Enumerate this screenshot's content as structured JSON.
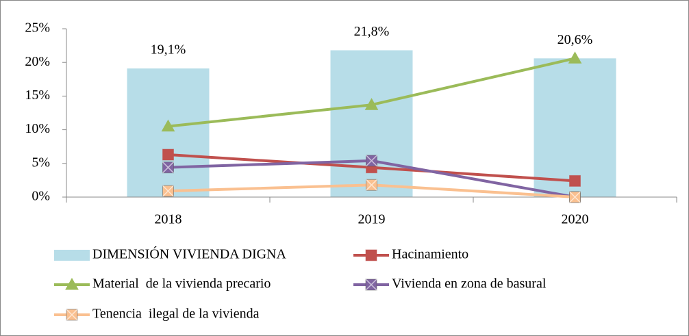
{
  "chart_data": {
    "type": "combo",
    "categories": [
      "2018",
      "2019",
      "2020"
    ],
    "series": [
      {
        "name": "DIMENSIÓN VIVIENDA DIGNA",
        "type": "bar",
        "color": "#b7dde8",
        "values": [
          19.1,
          21.8,
          20.6
        ],
        "value_labels": [
          "19,1%",
          "21,8%",
          "20,6%"
        ]
      },
      {
        "name": "Hacinamiento",
        "type": "line",
        "marker": "square",
        "color": "#c0504d",
        "values": [
          6.3,
          4.4,
          2.4
        ]
      },
      {
        "name": "Material  de la vivienda precario",
        "type": "line",
        "marker": "triangle",
        "color": "#9bbb59",
        "values": [
          10.5,
          13.7,
          20.6
        ]
      },
      {
        "name": "Vivienda en zona de basural",
        "type": "line",
        "marker": "square-x",
        "color": "#8064a2",
        "values": [
          4.4,
          5.4,
          0
        ]
      },
      {
        "name": "Tenencia  ilegal de la vivienda",
        "type": "line",
        "marker": "square-x",
        "color": "#fac090",
        "values": [
          0.9,
          1.8,
          0
        ]
      }
    ],
    "ylim": [
      0,
      25
    ],
    "yticks": [
      {
        "value": 0,
        "label": "0%"
      },
      {
        "value": 5,
        "label": "5%"
      },
      {
        "value": 10,
        "label": "10%"
      },
      {
        "value": 15,
        "label": "15%"
      },
      {
        "value": 20,
        "label": "20%"
      },
      {
        "value": 25,
        "label": "25%"
      }
    ],
    "legend": "bottom",
    "grid": false
  }
}
